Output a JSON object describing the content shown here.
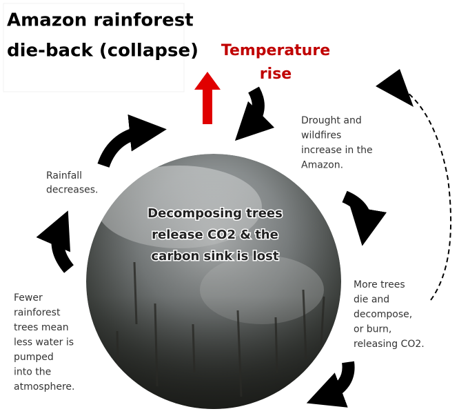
{
  "title": [
    "Amazon rainforest",
    "die-back (collapse)"
  ],
  "temperature": [
    "Temperature",
    "rise"
  ],
  "drought": [
    "Drought and",
    "wildfires",
    "increase in the",
    "Amazon."
  ],
  "center": [
    "Decomposing  trees",
    "release CO2 & the",
    "carbon sink is lost"
  ],
  "more_trees": [
    "More trees",
    "die and",
    "decompose,",
    "or burn,",
    "releasing CO2."
  ],
  "rainfall": [
    "Rainfall",
    "decreases."
  ],
  "fewer": [
    "Fewer",
    "rainforest",
    "trees mean",
    "less water is",
    "pumped",
    "into the",
    "atmosphere."
  ]
}
